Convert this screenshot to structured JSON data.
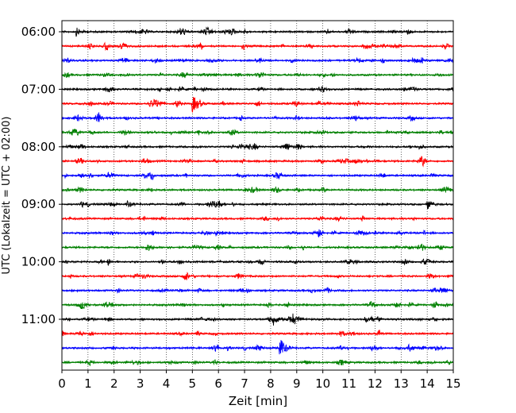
{
  "chart_data": {
    "type": "line",
    "xlabel": "Zeit  [min]",
    "ylabel": "UTC (Lokalzeit = UTC + 02:00)",
    "xlim": [
      0,
      15
    ],
    "x_ticks": [
      "0",
      "1",
      "2",
      "3",
      "4",
      "5",
      "6",
      "7",
      "8",
      "9",
      "10",
      "11",
      "12",
      "13",
      "14",
      "15"
    ],
    "grid": "vertical-dotted",
    "trace_colors": [
      "#000000",
      "#ff0000",
      "#0000ff",
      "#008000"
    ],
    "y_ticks": [
      {
        "label": "06:00",
        "trace": 0
      },
      {
        "label": "07:00",
        "trace": 4
      },
      {
        "label": "08:00",
        "trace": 8
      },
      {
        "label": "09:00",
        "trace": 12
      },
      {
        "label": "10:00",
        "trace": 16
      },
      {
        "label": "11:00",
        "trace": 20
      }
    ],
    "traces": [
      {
        "start": "06:00",
        "events": [
          {
            "x": 0.55,
            "amp": 5
          }
        ]
      },
      {
        "start": "06:15",
        "events": []
      },
      {
        "start": "06:30",
        "events": []
      },
      {
        "start": "06:45",
        "events": []
      },
      {
        "start": "07:00",
        "events": []
      },
      {
        "start": "07:15",
        "events": [
          {
            "x": 5.0,
            "amp": 11
          }
        ]
      },
      {
        "start": "07:30",
        "events": []
      },
      {
        "start": "07:45",
        "events": []
      },
      {
        "start": "08:00",
        "events": []
      },
      {
        "start": "08:15",
        "events": []
      },
      {
        "start": "08:30",
        "events": []
      },
      {
        "start": "08:45",
        "events": []
      },
      {
        "start": "09:00",
        "events": [
          {
            "x": 14.0,
            "amp": 6
          },
          {
            "x": 2.5,
            "amp": 4
          }
        ]
      },
      {
        "start": "09:15",
        "events": []
      },
      {
        "start": "09:30",
        "events": []
      },
      {
        "start": "09:45",
        "events": []
      },
      {
        "start": "10:00",
        "events": []
      },
      {
        "start": "10:15",
        "events": []
      },
      {
        "start": "10:30",
        "events": []
      },
      {
        "start": "10:45",
        "events": []
      },
      {
        "start": "11:00",
        "events": [
          {
            "x": 8.85,
            "amp": 8
          },
          {
            "x": 8.1,
            "amp": 5
          },
          {
            "x": 11.6,
            "amp": 4
          }
        ]
      },
      {
        "start": "11:15",
        "events": []
      },
      {
        "start": "11:30",
        "events": [
          {
            "x": 8.35,
            "amp": 11
          }
        ]
      },
      {
        "start": "11:45",
        "events": []
      }
    ]
  }
}
